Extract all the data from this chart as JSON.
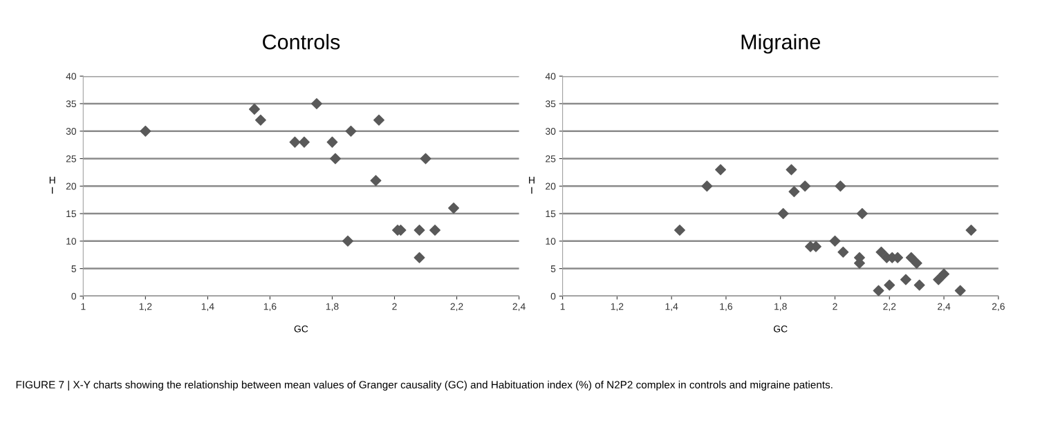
{
  "chart_data": [
    {
      "type": "scatter",
      "title": "Controls",
      "xlabel": "GC",
      "ylabel": "HI",
      "marker": "diamond",
      "grid": "y",
      "xlim": [
        1,
        2.4
      ],
      "xticks": [
        1,
        {
          "value": 1.2,
          "label": "1,2"
        },
        {
          "value": 1.4,
          "label": "1,4"
        },
        {
          "value": 1.6,
          "label": "1,6"
        },
        {
          "value": 1.8,
          "label": "1,8"
        },
        2,
        {
          "value": 2.2,
          "label": "2,2"
        },
        {
          "value": 2.4,
          "label": "2,4"
        }
      ],
      "ylim": [
        0,
        40
      ],
      "yticks": [
        0,
        5,
        10,
        15,
        20,
        25,
        30,
        35,
        40
      ],
      "series": [
        {
          "color": "#595959",
          "x": [
            1.2,
            1.55,
            1.57,
            1.75,
            1.68,
            1.71,
            1.8,
            1.81,
            1.86,
            1.95,
            1.94,
            2.1,
            2.19,
            2.01,
            2.02,
            2.08,
            2.13,
            1.85,
            2.08
          ],
          "values": [
            30,
            34,
            32,
            35,
            28,
            28,
            28,
            25,
            30,
            32,
            21,
            25,
            16,
            12,
            12,
            12,
            12,
            10,
            7
          ]
        }
      ],
      "annotations": [
        "FIGURE 7 | X-Y charts showing the relationship between mean values of Granger causality (GC) and Habituation index (%) of N2P2 complex in controls and migraine patients."
      ]
    },
    {
      "type": "scatter",
      "title": "Migraine",
      "xlabel": "GC",
      "ylabel": "HI",
      "marker": "diamond",
      "grid": "y",
      "xlim": [
        1,
        2.6
      ],
      "xticks": [
        1,
        {
          "value": 1.2,
          "label": "1,2"
        },
        {
          "value": 1.4,
          "label": "1,4"
        },
        {
          "value": 1.6,
          "label": "1,6"
        },
        {
          "value": 1.8,
          "label": "1,8"
        },
        2,
        {
          "value": 2.2,
          "label": "2,2"
        },
        {
          "value": 2.4,
          "label": "2,4"
        },
        {
          "value": 2.6,
          "label": "2,6"
        }
      ],
      "ylim": [
        0,
        40
      ],
      "yticks": [
        0,
        5,
        10,
        15,
        20,
        25,
        30,
        35,
        40
      ],
      "series": [
        {
          "color": "#595959",
          "x": [
            1.43,
            1.53,
            1.58,
            1.81,
            1.84,
            1.85,
            1.89,
            2.02,
            2.1,
            1.91,
            1.93,
            2.0,
            2.03,
            2.09,
            2.09,
            2.17,
            2.19,
            2.21,
            2.23,
            2.28,
            2.3,
            2.16,
            2.2,
            2.26,
            2.31,
            2.38,
            2.4,
            2.46,
            2.5
          ],
          "values": [
            12,
            20,
            23,
            15,
            23,
            19,
            20,
            20,
            15,
            9,
            9,
            10,
            8,
            7,
            6,
            8,
            7,
            7,
            7,
            7,
            6,
            1,
            2,
            3,
            2,
            3,
            4,
            1,
            12
          ]
        }
      ]
    }
  ]
}
